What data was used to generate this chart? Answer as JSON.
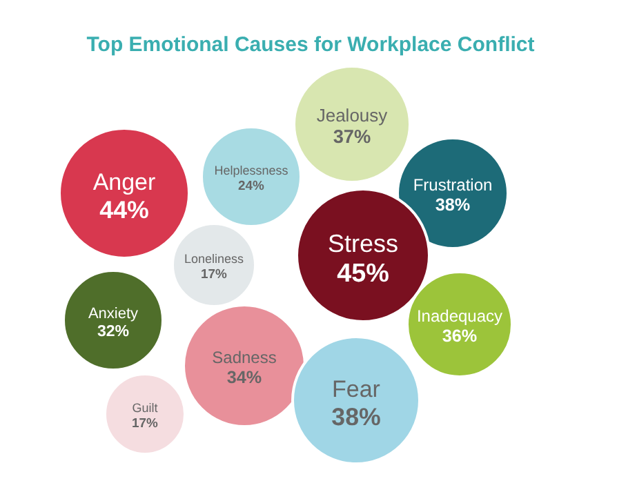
{
  "chart_data": {
    "type": "other",
    "title": "Top Emotional Causes for Workplace Conflict",
    "categories": [
      "Anger",
      "Helplessness",
      "Jealousy",
      "Frustration",
      "Loneliness",
      "Stress",
      "Anxiety",
      "Inadequacy",
      "Sadness",
      "Guilt",
      "Fear"
    ],
    "values": [
      44,
      24,
      37,
      38,
      17,
      45,
      32,
      36,
      34,
      17,
      38
    ],
    "value_labels": [
      "44%",
      "24%",
      "37%",
      "38%",
      "17%",
      "45%",
      "32%",
      "36%",
      "34%",
      "17%",
      "38%"
    ],
    "colors": [
      "#d8384f",
      "#a8dbe3",
      "#d8e6b0",
      "#1d6b78",
      "#e3e8ea",
      "#7a1020",
      "#4f6e2a",
      "#9cc43a",
      "#e8909a",
      "#f5dde0",
      "#a0d6e6"
    ]
  }
}
